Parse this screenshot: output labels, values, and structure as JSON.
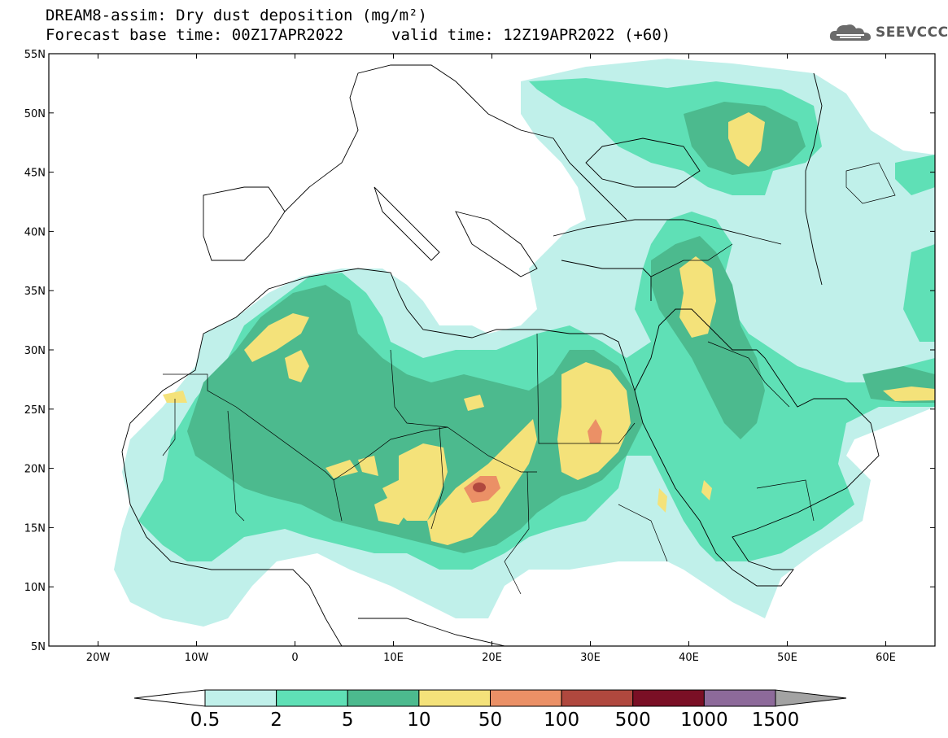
{
  "title": {
    "line1": "DREAM8-assim: Dry dust deposition (mg/m²)",
    "line2_base": "Forecast base time: 00Z17APR2022",
    "line2_valid": "valid time: 12Z19APR2022 (+60)"
  },
  "logo": {
    "text": "SEEVCCC",
    "icon": "cloud-logo-icon"
  },
  "map": {
    "projection": "lat-lon",
    "lon_range": [
      -25,
      65
    ],
    "lat_range": [
      5,
      55
    ],
    "lon_ticks": [
      "20W",
      "10W",
      "0",
      "10E",
      "20E",
      "30E",
      "40E",
      "50E",
      "60E"
    ],
    "lat_ticks": [
      "55N",
      "50N",
      "45N",
      "40N",
      "35N",
      "30N",
      "25N",
      "20N",
      "15N",
      "10N",
      "5N"
    ]
  },
  "colorbar": {
    "labels": [
      "0.5",
      "2",
      "5",
      "10",
      "50",
      "100",
      "500",
      "1000",
      "1500"
    ],
    "colors": [
      "#c0f0ea",
      "#5fe0b6",
      "#4cba8e",
      "#f4e27a",
      "#eb9066",
      "#b0483e",
      "#7a0f25",
      "#8d6a9a"
    ],
    "under_color": "#ffffff",
    "over_color": "#a3a3a3"
  },
  "levels": {
    "c05": "#c0f0ea",
    "c2": "#5fe0b6",
    "c5": "#4cba8e",
    "c10": "#f4e27a",
    "c50": "#eb9066",
    "c100": "#b0483e"
  }
}
